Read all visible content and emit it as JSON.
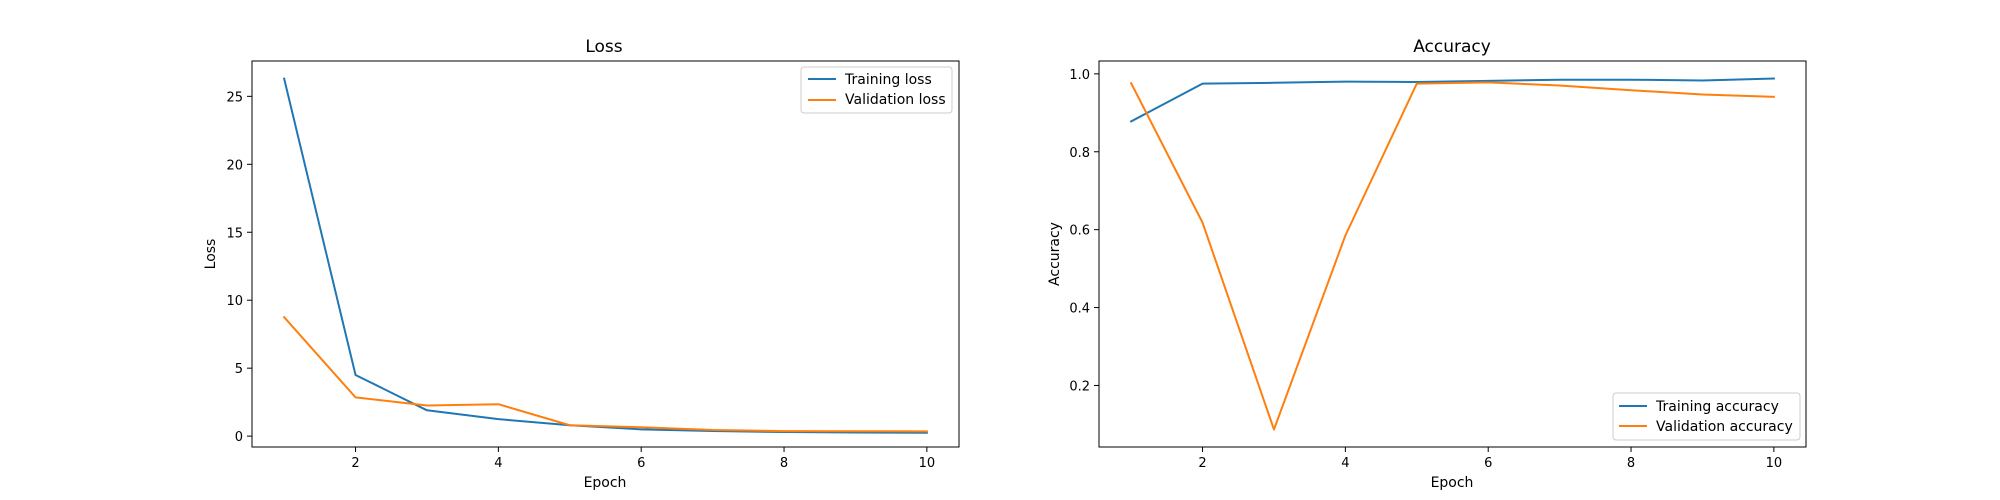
{
  "chart_data": [
    {
      "type": "line",
      "title": "Loss",
      "xlabel": "Epoch",
      "ylabel": "Loss",
      "x": [
        1,
        2,
        3,
        4,
        5,
        6,
        7,
        8,
        9,
        10
      ],
      "series": [
        {
          "name": "Training loss",
          "color": "#1f77b4",
          "values": [
            26.3,
            4.5,
            1.9,
            1.25,
            0.8,
            0.5,
            0.38,
            0.3,
            0.27,
            0.25
          ]
        },
        {
          "name": "Validation loss",
          "color": "#ff7f0e",
          "values": [
            8.75,
            2.85,
            2.25,
            2.35,
            0.8,
            0.65,
            0.45,
            0.37,
            0.36,
            0.35
          ]
        }
      ],
      "xlim": [
        0.55,
        10.45
      ],
      "ylim": [
        -0.8,
        27.6
      ],
      "xticks": [
        2,
        4,
        6,
        8,
        10
      ],
      "yticks": [
        0,
        5,
        10,
        15,
        20,
        25
      ],
      "ytick_decimals": 0,
      "grid": false,
      "legend_position": "upper right"
    },
    {
      "type": "line",
      "title": "Accuracy",
      "xlabel": "Epoch",
      "ylabel": "Accuracy",
      "x": [
        1,
        2,
        3,
        4,
        5,
        6,
        7,
        8,
        9,
        10
      ],
      "series": [
        {
          "name": "Training accuracy",
          "color": "#1f77b4",
          "values": [
            0.878,
            0.975,
            0.977,
            0.98,
            0.979,
            0.982,
            0.985,
            0.985,
            0.983,
            0.988
          ]
        },
        {
          "name": "Validation accuracy",
          "color": "#ff7f0e",
          "values": [
            0.976,
            0.618,
            0.087,
            0.585,
            0.975,
            0.978,
            0.97,
            0.958,
            0.947,
            0.941
          ]
        }
      ],
      "xlim": [
        0.55,
        10.45
      ],
      "ylim": [
        0.042,
        1.033
      ],
      "xticks": [
        2,
        4,
        6,
        8,
        10
      ],
      "yticks": [
        0.2,
        0.4,
        0.6,
        0.8,
        1.0
      ],
      "ytick_decimals": 1,
      "grid": false,
      "legend_position": "lower right"
    }
  ]
}
